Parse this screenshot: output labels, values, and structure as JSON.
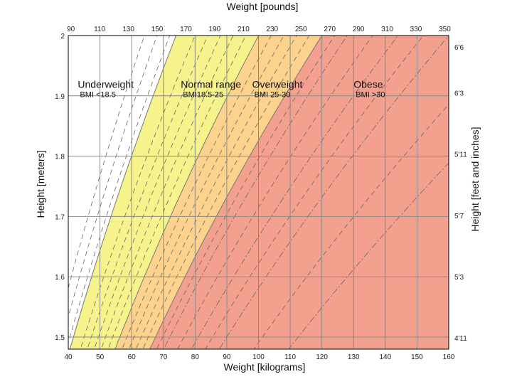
{
  "chart_data": {
    "type": "area",
    "title": "Weight [pounds]",
    "xlabel": "Weight [kilograms]",
    "ylabel": "Height [meters]",
    "ylabel_right": "Height [feet and inches]",
    "xlabel_top": "Weight [pounds]",
    "xlim": [
      40,
      160
    ],
    "ylim": [
      1.48,
      2.0
    ],
    "x_ticks": [
      40,
      50,
      60,
      70,
      80,
      90,
      100,
      110,
      120,
      130,
      140,
      150,
      160
    ],
    "y_ticks": [
      1.5,
      1.6,
      1.7,
      1.8,
      1.9,
      2
    ],
    "y_tick_labels": [
      "1.5",
      "1.6",
      "1.7",
      "1.8",
      "1.9",
      "2"
    ],
    "top_ticks_lb": [
      90,
      110,
      130,
      150,
      170,
      190,
      210,
      230,
      250,
      270,
      290,
      310,
      330,
      350
    ],
    "right_ticks": [
      {
        "label": "4'11",
        "inches": 59
      },
      {
        "label": "5'3",
        "inches": 63
      },
      {
        "label": "5'7",
        "inches": 67
      },
      {
        "label": "5'11",
        "inches": 71
      },
      {
        "label": "6'3",
        "inches": 75
      },
      {
        "label": "6'6",
        "inches": 78
      }
    ],
    "grid": true,
    "categories": [
      {
        "name": "Underweight",
        "bmi_label": "BMI <18.5",
        "bmi_min": 0,
        "bmi_max": 18.5,
        "color": "#ffffff",
        "label_pos": [
          43,
          1.91
        ]
      },
      {
        "name": "Normal range",
        "bmi_label": "BMI18.5-25",
        "bmi_min": 18.5,
        "bmi_max": 25,
        "color": "#f6f28c",
        "label_pos": [
          75.5,
          1.91
        ]
      },
      {
        "name": "Overweight",
        "bmi_label": "BMI 25-30",
        "bmi_min": 25,
        "bmi_max": 30,
        "color": "#fcd28c",
        "label_pos": [
          98,
          1.91
        ]
      },
      {
        "name": "Obese",
        "bmi_label": "BMI >30",
        "bmi_min": 30,
        "bmi_max": 100,
        "color": "#f4a08e",
        "label_pos": [
          130,
          1.91
        ]
      }
    ],
    "bmi_boundaries": [
      18.5,
      25,
      30
    ],
    "bmi_iso_lines": [
      {
        "bmi": 16,
        "style": "dashed"
      },
      {
        "bmi": 17,
        "style": "dashed"
      },
      {
        "bmi": 18,
        "style": "dashed"
      },
      {
        "bmi": 20,
        "style": "dashed"
      },
      {
        "bmi": 21,
        "style": "dashed"
      },
      {
        "bmi": 22,
        "style": "dashed"
      },
      {
        "bmi": 23,
        "style": "dashed"
      },
      {
        "bmi": 24,
        "style": "dashed"
      },
      {
        "bmi": 26,
        "style": "dashed"
      },
      {
        "bmi": 27,
        "style": "dashed"
      },
      {
        "bmi": 28,
        "style": "dashed"
      },
      {
        "bmi": 29,
        "style": "dashed"
      },
      {
        "bmi": 31,
        "style": "dashed"
      },
      {
        "bmi": 32,
        "style": "dashdot"
      },
      {
        "bmi": 34,
        "style": "dashed"
      },
      {
        "bmi": 36,
        "style": "dashdot"
      },
      {
        "bmi": 38,
        "style": "dashed"
      },
      {
        "bmi": 40,
        "style": "dashdot"
      },
      {
        "bmi": 45,
        "style": "dashed"
      },
      {
        "bmi": 50,
        "style": "dashdot"
      }
    ],
    "colors": {
      "grid": "#8a8a8a",
      "frame": "#000000",
      "boundary": "#777777",
      "iso": "#666666"
    }
  }
}
